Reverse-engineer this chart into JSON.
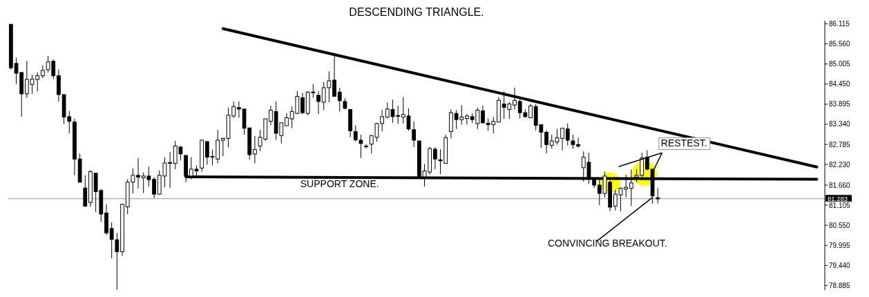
{
  "chart_data": {
    "type": "candlestick",
    "title": "DESCENDING TRIANGLE.",
    "categories": [
      null,
      null,
      null,
      null,
      null,
      null,
      null,
      null,
      null,
      null,
      null,
      null,
      null,
      null,
      null,
      null,
      null,
      null,
      null,
      null,
      null,
      null,
      null,
      null,
      null,
      null,
      null,
      null,
      null,
      null,
      null,
      null,
      null,
      null,
      null,
      null,
      null,
      null,
      null,
      null,
      null,
      null,
      null,
      null,
      null,
      null,
      null,
      null,
      null,
      null,
      null,
      null,
      null,
      null,
      null,
      null,
      null,
      null,
      null,
      null,
      null,
      null,
      null,
      null,
      null,
      null,
      null,
      null,
      null,
      null,
      null,
      null,
      null,
      null,
      null,
      null,
      null,
      null,
      null,
      null,
      null,
      null,
      null,
      null,
      null,
      null,
      null,
      null,
      null,
      null,
      null,
      null,
      null,
      null,
      null,
      null,
      null,
      null,
      null,
      null,
      null,
      null,
      null,
      null,
      null,
      null,
      null,
      null,
      null,
      null,
      null,
      null,
      null,
      null,
      null,
      null,
      null,
      null,
      null,
      null,
      null,
      null,
      null,
      null,
      null,
      null,
      null,
      null,
      null,
      null,
      null,
      null,
      null,
      null,
      null,
      null,
      null,
      null,
      null,
      null,
      null,
      null,
      null,
      null,
      null,
      null,
      null,
      null,
      null,
      null,
      null,
      null,
      null,
      null
    ],
    "ohlc": [
      [
        86.1,
        86.11,
        84.85,
        84.9
      ],
      [
        85.02,
        85.18,
        84.45,
        84.75
      ],
      [
        84.77,
        84.78,
        83.55,
        84.18
      ],
      [
        84.18,
        85.09,
        84.07,
        84.58
      ],
      [
        84.44,
        84.71,
        84.18,
        84.59
      ],
      [
        84.58,
        84.77,
        84.25,
        84.68
      ],
      [
        84.68,
        84.97,
        84.61,
        84.83
      ],
      [
        84.85,
        85.23,
        84.77,
        85.06
      ],
      [
        85.08,
        85.13,
        84.59,
        84.68
      ],
      [
        84.68,
        84.85,
        83.97,
        84.16
      ],
      [
        84.16,
        84.16,
        83.35,
        83.54
      ],
      [
        83.55,
        83.71,
        83.09,
        83.42
      ],
      [
        83.4,
        83.49,
        81.93,
        82.38
      ],
      [
        82.38,
        82.53,
        81.74,
        81.74
      ],
      [
        81.58,
        81.93,
        81.06,
        81.08
      ],
      [
        81.18,
        82.07,
        81.06,
        82.03
      ],
      [
        81.99,
        81.99,
        80.92,
        81.48
      ],
      [
        81.51,
        81.55,
        80.65,
        80.86
      ],
      [
        80.89,
        81.13,
        80.28,
        80.34
      ],
      [
        80.46,
        80.63,
        79.64,
        80.16
      ],
      [
        80.15,
        80.34,
        78.77,
        79.82
      ],
      [
        79.82,
        81.15,
        79.7,
        81.13
      ],
      [
        81.06,
        81.82,
        80.86,
        81.74
      ],
      [
        81.74,
        82.12,
        81.43,
        81.93
      ],
      [
        81.93,
        82.41,
        81.57,
        81.88
      ],
      [
        81.86,
        82.01,
        81.44,
        81.91
      ],
      [
        81.91,
        82.17,
        81.62,
        81.81
      ],
      [
        81.82,
        81.88,
        81.3,
        81.41
      ],
      [
        81.41,
        82.07,
        81.39,
        81.93
      ],
      [
        81.91,
        82.43,
        81.6,
        82.27
      ],
      [
        82.27,
        82.57,
        81.58,
        82.28
      ],
      [
        82.26,
        82.88,
        82.1,
        82.74
      ],
      [
        82.71,
        82.74,
        82.34,
        82.52
      ],
      [
        82.48,
        82.48,
        81.74,
        81.91
      ],
      [
        81.91,
        82.43,
        81.82,
        82.1
      ],
      [
        82.1,
        82.2,
        81.91,
        82.05
      ],
      [
        82.13,
        82.91,
        82.03,
        82.9
      ],
      [
        82.86,
        82.88,
        82.22,
        82.43
      ],
      [
        82.45,
        82.64,
        82.2,
        82.44
      ],
      [
        82.38,
        83.19,
        82.26,
        82.9
      ],
      [
        82.9,
        82.97,
        82.46,
        82.95
      ],
      [
        82.95,
        83.8,
        82.71,
        83.59
      ],
      [
        83.57,
        83.97,
        83.52,
        83.83
      ],
      [
        83.8,
        83.97,
        83.52,
        83.76
      ],
      [
        83.76,
        83.76,
        83.05,
        83.23
      ],
      [
        83.24,
        83.24,
        82.36,
        82.5
      ],
      [
        82.52,
        83.02,
        82.26,
        82.64
      ],
      [
        82.74,
        83.19,
        82.6,
        82.98
      ],
      [
        82.93,
        83.49,
        82.88,
        83.49
      ],
      [
        83.42,
        83.85,
        83.31,
        83.73
      ],
      [
        83.69,
        83.97,
        82.91,
        83.09
      ],
      [
        83.03,
        83.38,
        82.81,
        83.38
      ],
      [
        83.3,
        83.64,
        83.3,
        83.52
      ],
      [
        83.49,
        83.83,
        83.23,
        83.69
      ],
      [
        83.64,
        84.26,
        83.62,
        84.11
      ],
      [
        84.07,
        84.21,
        83.62,
        83.66
      ],
      [
        83.64,
        84.25,
        83.59,
        84.23
      ],
      [
        84.22,
        84.45,
        84.07,
        84.23
      ],
      [
        84.14,
        84.25,
        83.62,
        83.97
      ],
      [
        83.95,
        84.51,
        83.73,
        84.35
      ],
      [
        84.35,
        84.8,
        83.95,
        84.54
      ],
      [
        84.56,
        85.22,
        84.11,
        84.11
      ],
      [
        84.23,
        84.35,
        83.69,
        83.99
      ],
      [
        83.97,
        84.06,
        83.75,
        83.78
      ],
      [
        83.75,
        83.75,
        82.98,
        83.16
      ],
      [
        83.14,
        83.31,
        82.86,
        82.91
      ],
      [
        82.9,
        83.05,
        82.41,
        82.81
      ],
      [
        82.74,
        82.79,
        82.67,
        82.72
      ],
      [
        82.79,
        83.03,
        82.53,
        83.03
      ],
      [
        82.98,
        83.38,
        82.86,
        83.36
      ],
      [
        83.36,
        83.73,
        83.14,
        83.55
      ],
      [
        83.54,
        83.94,
        83.5,
        83.76
      ],
      [
        83.75,
        84.02,
        83.38,
        83.55
      ],
      [
        83.58,
        83.85,
        83.35,
        83.57
      ],
      [
        83.54,
        84.09,
        83.36,
        83.61
      ],
      [
        83.57,
        83.78,
        83.16,
        83.21
      ],
      [
        83.19,
        83.42,
        82.71,
        82.9
      ],
      [
        82.88,
        82.88,
        81.86,
        81.88
      ],
      [
        81.89,
        82.24,
        81.62,
        82.05
      ],
      [
        82.02,
        82.71,
        81.95,
        82.67
      ],
      [
        82.65,
        82.71,
        82.1,
        82.38
      ],
      [
        82.36,
        82.65,
        81.96,
        82.33
      ],
      [
        82.26,
        83.05,
        82.26,
        82.97
      ],
      [
        83.14,
        83.75,
        82.95,
        83.66
      ],
      [
        83.64,
        83.73,
        83.21,
        83.47
      ],
      [
        83.47,
        83.87,
        83.33,
        83.54
      ],
      [
        83.5,
        83.62,
        83.33,
        83.57
      ],
      [
        83.55,
        83.64,
        83.38,
        83.47
      ],
      [
        83.36,
        83.8,
        83.21,
        83.73
      ],
      [
        83.71,
        83.85,
        83.36,
        83.38
      ],
      [
        83.37,
        83.5,
        83.16,
        83.33
      ],
      [
        83.33,
        83.54,
        83.09,
        83.42
      ],
      [
        83.4,
        84.09,
        83.4,
        84.0
      ],
      [
        83.9,
        84.25,
        83.49,
        83.81
      ],
      [
        83.75,
        83.95,
        83.49,
        83.9
      ],
      [
        83.87,
        84.35,
        83.75,
        84.0
      ],
      [
        83.97,
        84.04,
        83.5,
        83.66
      ],
      [
        83.66,
        83.75,
        83.52,
        83.55
      ],
      [
        83.52,
        83.9,
        83.52,
        83.85
      ],
      [
        83.83,
        83.9,
        83.17,
        83.31
      ],
      [
        83.33,
        83.33,
        82.69,
        83.12
      ],
      [
        83.12,
        83.17,
        82.53,
        82.78
      ],
      [
        82.76,
        83.05,
        82.67,
        82.88
      ],
      [
        82.85,
        83.21,
        82.78,
        82.97
      ],
      [
        82.95,
        83.24,
        82.62,
        83.23
      ],
      [
        83.21,
        83.36,
        82.76,
        82.9
      ],
      [
        82.88,
        83.05,
        82.66,
        82.78
      ],
      [
        82.78,
        82.97,
        82.69,
        82.74
      ],
      [
        82.14,
        82.59,
        81.76,
        82.43
      ],
      [
        82.29,
        82.55,
        81.69,
        81.82
      ],
      [
        81.82,
        81.82,
        81.58,
        81.66
      ],
      [
        81.66,
        81.81,
        81.11,
        81.43
      ],
      [
        81.43,
        82.03,
        81.32,
        81.91
      ],
      [
        81.74,
        81.79,
        80.94,
        81.05
      ],
      [
        81.08,
        81.53,
        80.96,
        81.41
      ],
      [
        81.39,
        81.6,
        80.94,
        81.57
      ],
      [
        81.55,
        81.95,
        81.32,
        81.6
      ],
      [
        81.57,
        82.1,
        81.08,
        81.72
      ],
      [
        81.88,
        82.1,
        81.74,
        81.93
      ],
      [
        81.93,
        82.55,
        81.89,
        82.41
      ],
      [
        82.43,
        82.62,
        82.07,
        82.1
      ],
      [
        82.1,
        82.1,
        81.15,
        81.36
      ],
      [
        81.31,
        81.58,
        81.15,
        81.28
      ],
      null,
      null,
      null,
      null,
      null,
      null,
      null,
      null,
      null,
      null,
      null,
      null,
      null,
      null,
      null,
      null,
      null,
      null,
      null,
      null,
      null,
      null,
      null,
      null,
      null,
      null,
      null,
      null,
      null,
      null,
      null
    ],
    "color": "#000000",
    "series": [
      {
        "type": "line",
        "values": [
          null,
          null,
          null,
          null,
          null,
          null,
          null,
          null,
          null,
          null,
          null,
          null,
          null,
          null,
          null,
          null,
          null,
          null,
          null,
          null,
          null,
          null,
          null,
          null,
          null,
          null,
          null,
          null,
          null,
          null,
          null,
          null,
          null,
          null,
          null,
          null,
          null,
          null,
          null,
          null,
          85.98,
          null,
          null,
          null,
          null,
          null,
          null,
          null,
          null,
          null,
          null,
          null,
          null,
          null,
          null,
          null,
          null,
          null,
          null,
          null,
          null,
          null,
          null,
          null,
          null,
          null,
          null,
          null,
          null,
          null,
          null,
          null,
          null,
          null,
          null,
          null,
          null,
          null,
          null,
          null,
          null,
          null,
          null,
          null,
          null,
          null,
          null,
          null,
          null,
          null,
          null,
          null,
          null,
          null,
          null,
          null,
          null,
          null,
          null,
          null,
          null,
          null,
          null,
          null,
          null,
          null,
          null,
          null,
          null,
          null,
          null,
          null,
          null,
          null,
          null,
          null,
          null,
          null,
          null,
          null,
          null,
          null,
          null,
          null,
          null,
          null,
          null,
          null,
          null,
          null,
          null,
          null,
          null,
          null,
          null,
          null,
          null,
          null,
          null,
          null,
          null,
          null,
          null,
          null,
          null,
          null,
          null,
          null,
          null,
          null,
          null,
          null,
          82.16,
          null
        ],
        "color": "#000000"
      },
      {
        "type": "line",
        "values": [
          null,
          null,
          null,
          null,
          null,
          null,
          null,
          null,
          null,
          null,
          null,
          null,
          null,
          null,
          null,
          null,
          null,
          null,
          null,
          null,
          null,
          null,
          null,
          null,
          null,
          null,
          null,
          null,
          null,
          null,
          null,
          null,
          null,
          81.89,
          null,
          null,
          null,
          null,
          null,
          null,
          null,
          null,
          null,
          null,
          null,
          null,
          null,
          null,
          null,
          null,
          null,
          null,
          null,
          null,
          null,
          null,
          null,
          null,
          null,
          null,
          null,
          null,
          null,
          null,
          null,
          null,
          null,
          null,
          null,
          null,
          null,
          null,
          null,
          null,
          null,
          null,
          null,
          null,
          null,
          null,
          null,
          null,
          null,
          null,
          null,
          null,
          null,
          null,
          null,
          null,
          null,
          null,
          null,
          null,
          null,
          null,
          null,
          null,
          null,
          null,
          null,
          null,
          null,
          null,
          null,
          null,
          null,
          null,
          null,
          null,
          null,
          null,
          null,
          null,
          null,
          null,
          null,
          null,
          null,
          null,
          null,
          null,
          null,
          null,
          null,
          null,
          null,
          null,
          null,
          null,
          null,
          null,
          null,
          null,
          null,
          null,
          null,
          null,
          null,
          null,
          null,
          null,
          null,
          null,
          null,
          null,
          null,
          null,
          null,
          null,
          null,
          null,
          81.82,
          null
        ],
        "color": "#000000"
      }
    ],
    "ylim": [
      78.76,
      86.2
    ],
    "yticks": [
      {
        "value": 86.115,
        "label": "86.115"
      },
      {
        "value": 85.56,
        "label": "85.560"
      },
      {
        "value": 85.005,
        "label": "85.005"
      },
      {
        "value": 84.45,
        "label": "84.450"
      },
      {
        "value": 83.895,
        "label": "83.895"
      },
      {
        "value": 83.34,
        "label": "83.340"
      },
      {
        "value": 82.785,
        "label": "82.785"
      },
      {
        "value": 82.23,
        "label": "82.230"
      },
      {
        "value": 81.66,
        "label": "81.660"
      },
      {
        "value": 81.105,
        "label": "81.105"
      },
      {
        "value": 80.55,
        "label": "80.550"
      },
      {
        "value": 79.995,
        "label": "79.995"
      },
      {
        "value": 79.44,
        "label": "79.440"
      },
      {
        "value": 78.885,
        "label": "78.885"
      }
    ],
    "tick_labels": "y",
    "ref_lines": [
      {
        "axis": "y",
        "value": 81.283,
        "label": "81.283",
        "color": "#8a9bb0"
      }
    ],
    "annotations": [
      "SUPPORT ZONE.",
      "RESTEST.",
      "CONVINCING BREAKOUT."
    ]
  }
}
